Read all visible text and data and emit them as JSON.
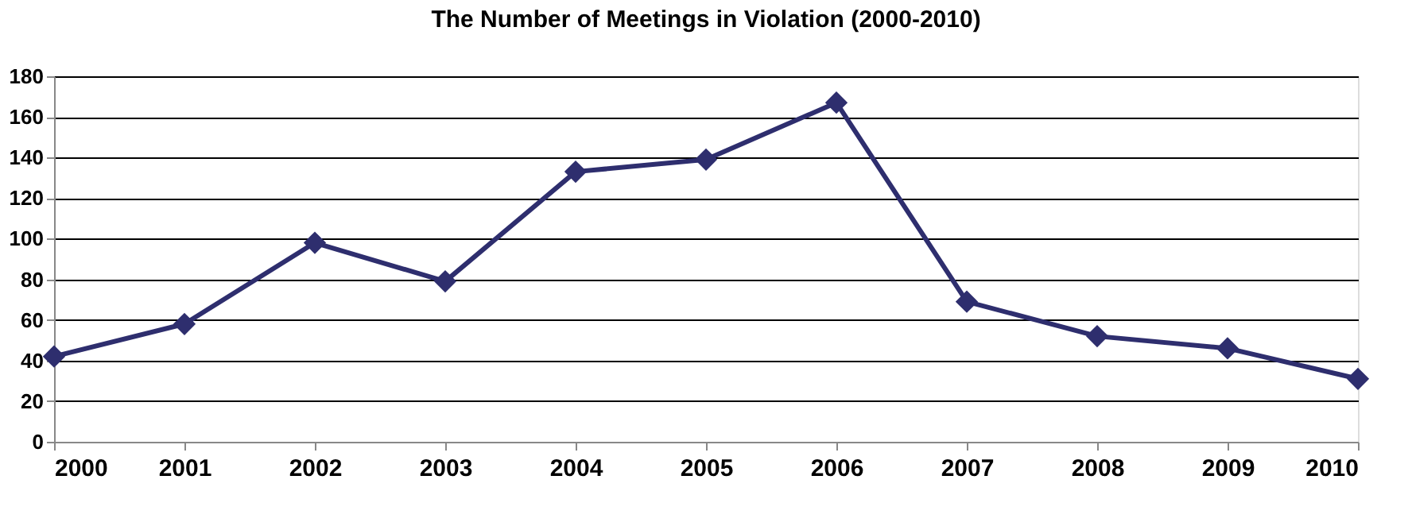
{
  "chart_data": {
    "type": "line",
    "title": "The Number of Meetings in Violation (2000-2010)",
    "x": [
      2000,
      2001,
      2002,
      2003,
      2004,
      2005,
      2006,
      2007,
      2008,
      2009,
      2010
    ],
    "series": [
      {
        "color": "#2e2e6e",
        "values": [
          42,
          58,
          98,
          79,
          133,
          139,
          167,
          69,
          52,
          46,
          31
        ]
      }
    ],
    "xlim": [
      2000,
      2010
    ],
    "xticks": [
      2000,
      2001,
      2002,
      2003,
      2004,
      2005,
      2006,
      2007,
      2008,
      2009,
      2010
    ],
    "ylim": [
      0,
      180
    ],
    "yticks": [
      0,
      20,
      40,
      60,
      80,
      100,
      120,
      140,
      160,
      180
    ],
    "grid": "y",
    "marker": "diamond",
    "line_style": "solid",
    "legend": false
  }
}
